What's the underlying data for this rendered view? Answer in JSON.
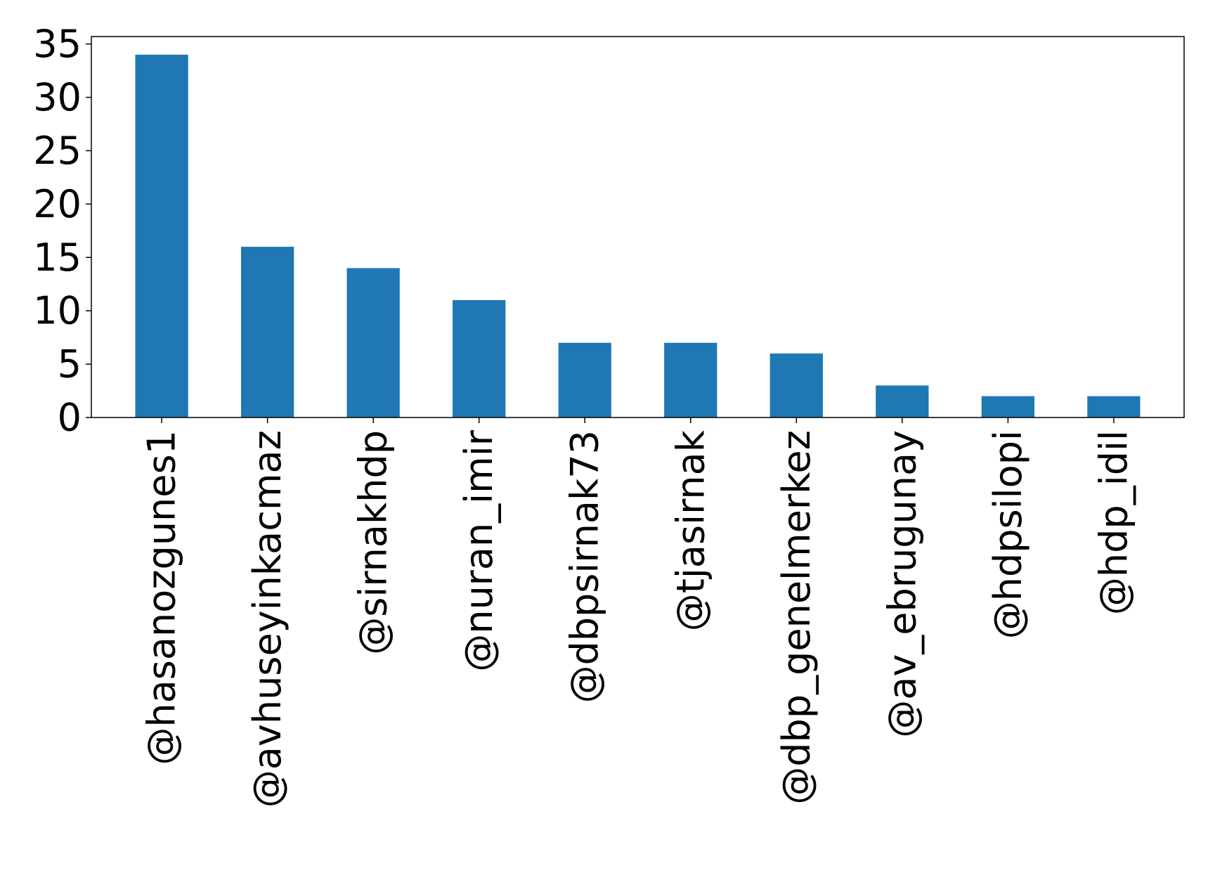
{
  "chart_data": {
    "type": "bar",
    "categories": [
      "@hasanozgunes1",
      "@avhuseyinkacmaz",
      "@sirnakhdp",
      "@nuran_imir",
      "@dbpsirnak73",
      "@tjasirnak",
      "@dbp_genelmerkez",
      "@av_ebrugunay",
      "@hdpsilopi",
      "@hdp_idil"
    ],
    "values": [
      34,
      16,
      14,
      11,
      7,
      7,
      6,
      3,
      2,
      2
    ],
    "title": "",
    "xlabel": "",
    "ylabel": "",
    "ylim": [
      0,
      35.7
    ],
    "yticks": [
      "0",
      "5",
      "10",
      "15",
      "20",
      "25",
      "30",
      "35"
    ],
    "grid": false,
    "legend": "none",
    "bar_color": "#1f77b4"
  }
}
